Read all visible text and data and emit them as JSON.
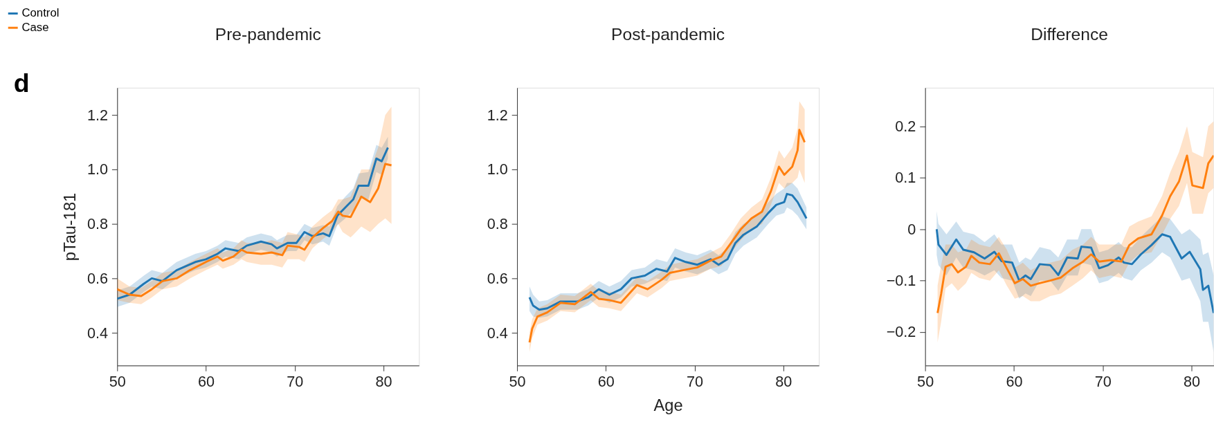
{
  "chart_data": [
    {
      "type": "line",
      "title": "Pre-pandemic",
      "ylabel": "pTau-181",
      "annotations": [
        "d"
      ],
      "legend": "top left",
      "grid": false,
      "xlim": [
        50,
        84
      ],
      "xticks": [
        50,
        60,
        70,
        80
      ],
      "ylim": [
        0.28,
        1.3
      ],
      "yticks": [
        0.4,
        0.6,
        0.8,
        {
          "value": 1,
          "label": "1.0"
        },
        1.2
      ],
      "series": [
        {
          "name": "Control",
          "color": "#1f77b4",
          "x": [
            50,
            51.4,
            53,
            53.9,
            55.1,
            56.7,
            58.8,
            60,
            61.3,
            62.2,
            63.7,
            64.6,
            66.2,
            67.4,
            68,
            69.2,
            70.2,
            71.1,
            72,
            73.2,
            73.9,
            74.8,
            75.7,
            76.6,
            77.2,
            78.3,
            79.2,
            79.8,
            80.5
          ],
          "values": [
            0.525,
            0.54,
            0.58,
            0.6,
            0.59,
            0.63,
            0.66,
            0.67,
            0.69,
            0.71,
            0.7,
            0.72,
            0.735,
            0.725,
            0.71,
            0.73,
            0.73,
            0.77,
            0.755,
            0.765,
            0.755,
            0.83,
            0.86,
            0.89,
            0.94,
            0.94,
            1.04,
            1.03,
            1.08
          ],
          "lower": [
            0.495,
            0.51,
            0.55,
            0.57,
            0.56,
            0.6,
            0.63,
            0.64,
            0.66,
            0.68,
            0.67,
            0.69,
            0.705,
            0.695,
            0.68,
            0.7,
            0.7,
            0.74,
            0.725,
            0.735,
            0.72,
            0.795,
            0.82,
            0.85,
            0.895,
            0.89,
            0.99,
            0.98,
            1.04
          ],
          "upper": [
            0.555,
            0.57,
            0.61,
            0.63,
            0.62,
            0.66,
            0.69,
            0.7,
            0.72,
            0.74,
            0.73,
            0.75,
            0.765,
            0.755,
            0.74,
            0.76,
            0.76,
            0.8,
            0.785,
            0.795,
            0.79,
            0.865,
            0.9,
            0.93,
            0.985,
            0.99,
            1.09,
            1.08,
            1.12
          ]
        },
        {
          "name": "Case",
          "color": "#ff7f0e",
          "x": [
            50,
            51.4,
            52.7,
            53.9,
            55.1,
            56.7,
            58.2,
            60,
            61.3,
            61.9,
            63.1,
            64,
            64.6,
            66.2,
            67.4,
            68.6,
            69.2,
            70.5,
            71.1,
            72,
            73.2,
            74.2,
            74.9,
            75.4,
            76.3,
            77.5,
            78.5,
            79.4,
            80.2,
            80.9
          ],
          "values": [
            0.56,
            0.54,
            0.535,
            0.56,
            0.59,
            0.6,
            0.63,
            0.66,
            0.68,
            0.665,
            0.68,
            0.705,
            0.695,
            0.69,
            0.695,
            0.685,
            0.72,
            0.715,
            0.705,
            0.75,
            0.785,
            0.81,
            0.845,
            0.83,
            0.825,
            0.9,
            0.88,
            0.93,
            1.02,
            1.015
          ],
          "lower": [
            0.52,
            0.51,
            0.505,
            0.53,
            0.56,
            0.57,
            0.6,
            0.63,
            0.65,
            0.635,
            0.65,
            0.67,
            0.66,
            0.65,
            0.65,
            0.64,
            0.67,
            0.67,
            0.66,
            0.71,
            0.745,
            0.77,
            0.8,
            0.77,
            0.75,
            0.79,
            0.77,
            0.8,
            0.82,
            0.8
          ],
          "upper": [
            0.6,
            0.57,
            0.565,
            0.59,
            0.62,
            0.63,
            0.66,
            0.69,
            0.71,
            0.695,
            0.71,
            0.74,
            0.73,
            0.73,
            0.74,
            0.73,
            0.77,
            0.76,
            0.75,
            0.79,
            0.825,
            0.85,
            0.89,
            0.89,
            0.9,
            1.0,
            1.0,
            1.08,
            1.2,
            1.23
          ]
        }
      ]
    },
    {
      "type": "line",
      "title": "Post-pandemic",
      "xlabel": "Age",
      "grid": false,
      "xlim": [
        50,
        84
      ],
      "xticks": [
        50,
        60,
        70,
        80
      ],
      "ylim": [
        0.28,
        1.3
      ],
      "yticks": [
        0.4,
        0.6,
        0.8,
        {
          "value": 1,
          "label": "1.0"
        },
        1.2
      ],
      "series": [
        {
          "color": "#1f77b4",
          "x": [
            51.4,
            51.8,
            52.5,
            53.4,
            54.9,
            56.8,
            58,
            59.2,
            60.4,
            61.7,
            62.9,
            64.4,
            65.7,
            66.9,
            67.8,
            69,
            70.3,
            71.8,
            72.7,
            73.7,
            74.6,
            75.5,
            77,
            78.3,
            79.2,
            80.1,
            80.4,
            81,
            81.6,
            82.6
          ],
          "values": [
            0.53,
            0.5,
            0.485,
            0.49,
            0.515,
            0.515,
            0.53,
            0.56,
            0.54,
            0.56,
            0.6,
            0.61,
            0.635,
            0.625,
            0.675,
            0.66,
            0.65,
            0.67,
            0.65,
            0.67,
            0.73,
            0.76,
            0.79,
            0.84,
            0.87,
            0.88,
            0.91,
            0.905,
            0.88,
            0.82
          ],
          "lower": [
            0.48,
            0.46,
            0.455,
            0.46,
            0.485,
            0.485,
            0.5,
            0.53,
            0.51,
            0.53,
            0.57,
            0.58,
            0.6,
            0.59,
            0.64,
            0.625,
            0.615,
            0.635,
            0.615,
            0.63,
            0.69,
            0.72,
            0.75,
            0.8,
            0.83,
            0.84,
            0.86,
            0.85,
            0.83,
            0.78
          ],
          "upper": [
            0.57,
            0.54,
            0.515,
            0.52,
            0.545,
            0.545,
            0.56,
            0.59,
            0.57,
            0.59,
            0.63,
            0.64,
            0.67,
            0.66,
            0.71,
            0.695,
            0.685,
            0.705,
            0.685,
            0.71,
            0.77,
            0.8,
            0.83,
            0.88,
            0.91,
            0.93,
            0.95,
            0.95,
            0.93,
            0.86
          ]
        },
        {
          "color": "#ff7f0e",
          "x": [
            51.4,
            51.7,
            52.3,
            53.4,
            54.9,
            56.5,
            58.3,
            59.2,
            60.4,
            61.7,
            63.5,
            64.7,
            66.3,
            67.2,
            68.7,
            70.3,
            71.8,
            73,
            74,
            75.2,
            76.4,
            77.6,
            78.6,
            79.5,
            80.1,
            81,
            81.6,
            81.8,
            82.4
          ],
          "values": [
            0.365,
            0.415,
            0.46,
            0.475,
            0.51,
            0.505,
            0.55,
            0.525,
            0.52,
            0.51,
            0.575,
            0.56,
            0.595,
            0.62,
            0.63,
            0.64,
            0.665,
            0.68,
            0.725,
            0.78,
            0.82,
            0.845,
            0.92,
            1.01,
            0.98,
            1.01,
            1.07,
            1.145,
            1.1
          ],
          "lower": [
            0.33,
            0.38,
            0.43,
            0.445,
            0.48,
            0.475,
            0.52,
            0.495,
            0.49,
            0.48,
            0.545,
            0.53,
            0.565,
            0.59,
            0.6,
            0.61,
            0.635,
            0.645,
            0.69,
            0.74,
            0.78,
            0.8,
            0.87,
            0.95,
            0.93,
            0.95,
            0.97,
            1.0,
            0.95
          ],
          "upper": [
            0.4,
            0.45,
            0.49,
            0.505,
            0.54,
            0.535,
            0.58,
            0.555,
            0.55,
            0.54,
            0.605,
            0.59,
            0.625,
            0.65,
            0.66,
            0.67,
            0.695,
            0.715,
            0.76,
            0.82,
            0.86,
            0.89,
            0.97,
            1.07,
            1.04,
            1.08,
            1.15,
            1.25,
            1.22
          ]
        }
      ]
    },
    {
      "type": "line",
      "title": "Difference",
      "grid": false,
      "xlim": [
        50,
        82.5
      ],
      "xticks": [
        50,
        60,
        70,
        80
      ],
      "ylim": [
        -0.265,
        0.275
      ],
      "yticks": [
        {
          "value": -0.2,
          "label": "−0.2"
        },
        {
          "value": -0.1,
          "label": "−0.1"
        },
        {
          "value": 0,
          "label": "0"
        },
        {
          "value": 0.1,
          "label": "0.1"
        },
        {
          "value": 0.2,
          "label": "0.2"
        }
      ],
      "series": [
        {
          "color": "#1f77b4",
          "x": [
            51.3,
            51.5,
            52.4,
            53.5,
            54.3,
            55.5,
            56.7,
            57.8,
            58.6,
            59.8,
            60.6,
            61.3,
            61.9,
            62.9,
            64.1,
            65,
            66,
            67.2,
            67.6,
            68.7,
            69.6,
            70.6,
            71.8,
            72.4,
            73.3,
            74.3,
            75.5,
            76.7,
            77.6,
            78.9,
            79.8,
            81,
            81.3,
            81.9,
            82.5
          ],
          "values": [
            0,
            -0.03,
            -0.05,
            -0.02,
            -0.04,
            -0.045,
            -0.057,
            -0.044,
            -0.062,
            -0.065,
            -0.1,
            -0.09,
            -0.097,
            -0.068,
            -0.07,
            -0.089,
            -0.055,
            -0.057,
            -0.034,
            -0.036,
            -0.076,
            -0.07,
            -0.055,
            -0.065,
            -0.068,
            -0.049,
            -0.031,
            -0.01,
            -0.015,
            -0.057,
            -0.044,
            -0.078,
            -0.118,
            -0.11,
            -0.163
          ],
          "lower": [
            -0.05,
            -0.07,
            -0.09,
            -0.055,
            -0.075,
            -0.08,
            -0.09,
            -0.08,
            -0.095,
            -0.1,
            -0.135,
            -0.125,
            -0.13,
            -0.1,
            -0.1,
            -0.12,
            -0.09,
            -0.09,
            -0.065,
            -0.07,
            -0.105,
            -0.1,
            -0.085,
            -0.095,
            -0.1,
            -0.08,
            -0.065,
            -0.045,
            -0.055,
            -0.1,
            -0.095,
            -0.14,
            -0.18,
            -0.18,
            -0.24
          ],
          "upper": [
            0.035,
            0.01,
            -0.01,
            0.015,
            -0.005,
            -0.01,
            -0.025,
            -0.01,
            -0.03,
            -0.03,
            -0.065,
            -0.055,
            -0.06,
            -0.035,
            -0.04,
            -0.055,
            -0.02,
            -0.02,
            0.0,
            0.0,
            -0.045,
            -0.04,
            -0.025,
            -0.035,
            -0.035,
            -0.015,
            0.005,
            0.025,
            0.02,
            -0.01,
            0.0,
            -0.02,
            -0.05,
            -0.045,
            -0.09
          ]
        },
        {
          "color": "#ff7f0e",
          "x": [
            51.4,
            51.8,
            52.3,
            53,
            53.7,
            54.6,
            55.2,
            56.1,
            57.3,
            58.3,
            59.2,
            60.1,
            61,
            61.9,
            62.9,
            64.1,
            65.3,
            66.6,
            67.8,
            68.7,
            69.6,
            70.9,
            72.1,
            73,
            74,
            75.5,
            76.7,
            77.6,
            78.6,
            79.5,
            80.1,
            81.3,
            81.9,
            82.5
          ],
          "values": [
            -0.163,
            -0.126,
            -0.073,
            -0.068,
            -0.084,
            -0.073,
            -0.052,
            -0.065,
            -0.068,
            -0.047,
            -0.076,
            -0.105,
            -0.097,
            -0.11,
            -0.105,
            -0.1,
            -0.094,
            -0.076,
            -0.063,
            -0.049,
            -0.063,
            -0.06,
            -0.063,
            -0.031,
            -0.018,
            -0.01,
            0.027,
            0.064,
            0.093,
            0.143,
            0.085,
            0.08,
            0.128,
            0.143
          ],
          "lower": [
            -0.22,
            -0.18,
            -0.115,
            -0.105,
            -0.12,
            -0.105,
            -0.085,
            -0.095,
            -0.1,
            -0.08,
            -0.11,
            -0.135,
            -0.13,
            -0.14,
            -0.14,
            -0.13,
            -0.125,
            -0.11,
            -0.095,
            -0.08,
            -0.095,
            -0.09,
            -0.095,
            -0.065,
            -0.05,
            -0.045,
            -0.01,
            0.02,
            0.045,
            0.09,
            0.03,
            0.03,
            0.07,
            0.08
          ],
          "upper": [
            -0.11,
            -0.07,
            -0.03,
            -0.03,
            -0.045,
            -0.04,
            -0.02,
            -0.03,
            -0.035,
            -0.015,
            -0.04,
            -0.075,
            -0.065,
            -0.08,
            -0.07,
            -0.065,
            -0.06,
            -0.04,
            -0.03,
            -0.015,
            -0.03,
            -0.03,
            -0.03,
            0.005,
            0.015,
            0.025,
            0.065,
            0.11,
            0.15,
            0.2,
            0.15,
            0.14,
            0.2,
            0.21
          ]
        }
      ]
    }
  ]
}
